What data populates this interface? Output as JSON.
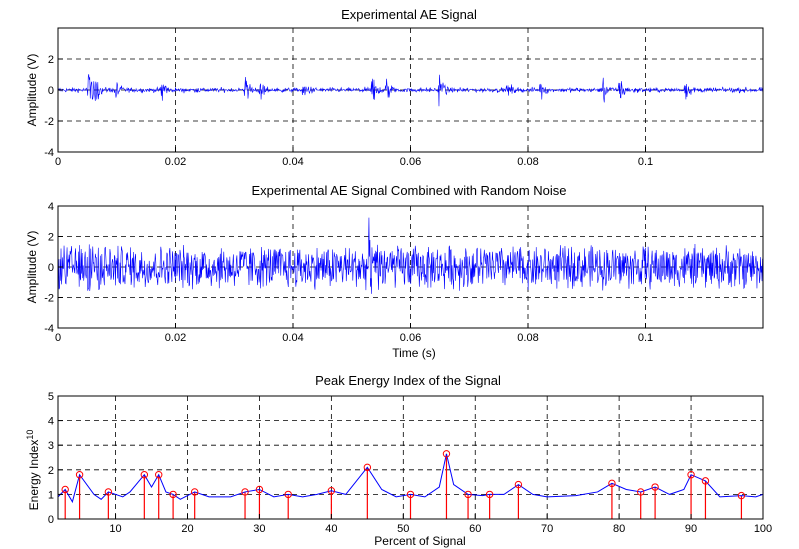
{
  "chart_data": [
    {
      "type": "line",
      "title": "Experimental AE Signal",
      "xlabel": "",
      "ylabel": "Amplitude (V)",
      "xlim": [
        0,
        0.12
      ],
      "ylim": [
        -4,
        4
      ],
      "xticks": [
        "0",
        "0.02",
        "0.04",
        "0.06",
        "0.08",
        "0.1"
      ],
      "xtick_values": [
        0,
        0.02,
        0.04,
        0.06,
        0.08,
        0.1
      ],
      "yticks": [
        "-4",
        "-2",
        "0",
        "2"
      ],
      "ytick_values": [
        -4,
        -2,
        0,
        2
      ],
      "grid": true,
      "color": "#0000ff",
      "signal": {
        "duration_s": 0.12,
        "baseline_amplitude_V": 0.35,
        "bursts": [
          {
            "t": 0.0052,
            "amp": 1.9
          },
          {
            "t": 0.0065,
            "amp": 0.8
          },
          {
            "t": 0.0098,
            "amp": 0.8
          },
          {
            "t": 0.0176,
            "amp": 1.1
          },
          {
            "t": 0.0318,
            "amp": 1.1
          },
          {
            "t": 0.0345,
            "amp": 0.8
          },
          {
            "t": 0.0418,
            "amp": 0.7
          },
          {
            "t": 0.0535,
            "amp": 1.3
          },
          {
            "t": 0.0558,
            "amp": 0.9
          },
          {
            "t": 0.0648,
            "amp": 1.4
          },
          {
            "t": 0.0765,
            "amp": 0.7
          },
          {
            "t": 0.0822,
            "amp": 0.7
          },
          {
            "t": 0.0928,
            "amp": 1.0
          },
          {
            "t": 0.0955,
            "amp": 1.5
          },
          {
            "t": 0.1068,
            "amp": 0.7
          }
        ]
      }
    },
    {
      "type": "line",
      "title": "Experimental AE Signal Combined with Random Noise",
      "xlabel": "Time (s)",
      "ylabel": "Amplitude (V)",
      "xlim": [
        0,
        0.12
      ],
      "ylim": [
        -4,
        4
      ],
      "xticks": [
        "0",
        "0.02",
        "0.04",
        "0.06",
        "0.08",
        "0.1"
      ],
      "xtick_values": [
        0,
        0.02,
        0.04,
        0.06,
        0.08,
        0.1
      ],
      "yticks": [
        "-4",
        "-2",
        "0",
        "2",
        "4"
      ],
      "ytick_values": [
        -4,
        -2,
        0,
        2,
        4
      ],
      "grid": true,
      "color": "#0000ff",
      "signal": {
        "duration_s": 0.12,
        "noise_amplitude_V": 1.6,
        "bursts": [
          {
            "t": 0.0052,
            "amp": 2.0
          },
          {
            "t": 0.0528,
            "amp": 2.6
          }
        ]
      }
    },
    {
      "type": "line",
      "title": "Peak Energy Index of the Signal",
      "xlabel": "Percent of Signal",
      "ylabel": "Energy Index",
      "ylabel_superscript": "10",
      "xlim": [
        2,
        100
      ],
      "ylim": [
        0,
        5
      ],
      "xticks": [
        "10",
        "20",
        "30",
        "40",
        "50",
        "60",
        "70",
        "80",
        "90",
        "100"
      ],
      "xtick_values": [
        10,
        20,
        30,
        40,
        50,
        60,
        70,
        80,
        90,
        100
      ],
      "yticks": [
        "0",
        "1",
        "2",
        "3",
        "4",
        "5"
      ],
      "ytick_values": [
        0,
        1,
        2,
        3,
        4,
        5
      ],
      "grid": true,
      "line_color": "#0000ff",
      "stem_color": "#ff0000",
      "curve": {
        "x": [
          2,
          3,
          4,
          5,
          7,
          8,
          9,
          11,
          12,
          14,
          15,
          16,
          17,
          18,
          19,
          21,
          23,
          26,
          28,
          30,
          32,
          34,
          36,
          38,
          40,
          42,
          45,
          47,
          49,
          51,
          53,
          55,
          56,
          57,
          59,
          61,
          62,
          64,
          66,
          68,
          70,
          74,
          77,
          79,
          81,
          83,
          85,
          87,
          89,
          90,
          92,
          94,
          97,
          99,
          100
        ],
        "y": [
          0.9,
          1.2,
          0.7,
          1.8,
          1.0,
          0.8,
          1.1,
          0.9,
          1.1,
          1.8,
          1.3,
          1.8,
          1.1,
          1.0,
          0.8,
          1.1,
          0.9,
          0.9,
          1.1,
          1.2,
          0.9,
          1.0,
          0.9,
          1.0,
          1.15,
          1.0,
          2.1,
          1.2,
          0.9,
          1.0,
          0.9,
          1.3,
          2.65,
          1.4,
          1.0,
          0.95,
          1.0,
          1.0,
          1.4,
          1.0,
          0.9,
          0.95,
          1.1,
          1.45,
          1.2,
          1.1,
          1.3,
          1.0,
          1.2,
          1.8,
          1.55,
          0.9,
          0.95,
          0.9,
          1.0
        ]
      },
      "peaks": {
        "x": [
          3,
          5,
          9,
          14,
          16,
          18,
          21,
          28,
          30,
          34,
          40,
          45,
          51,
          56,
          59,
          62,
          66,
          79,
          83,
          85,
          90,
          92,
          97
        ],
        "y": [
          1.2,
          1.8,
          1.1,
          1.8,
          1.8,
          1.0,
          1.1,
          1.1,
          1.2,
          1.0,
          1.15,
          2.1,
          1.0,
          2.65,
          1.0,
          1.0,
          1.4,
          1.45,
          1.1,
          1.3,
          1.8,
          1.55,
          0.95
        ]
      }
    }
  ]
}
